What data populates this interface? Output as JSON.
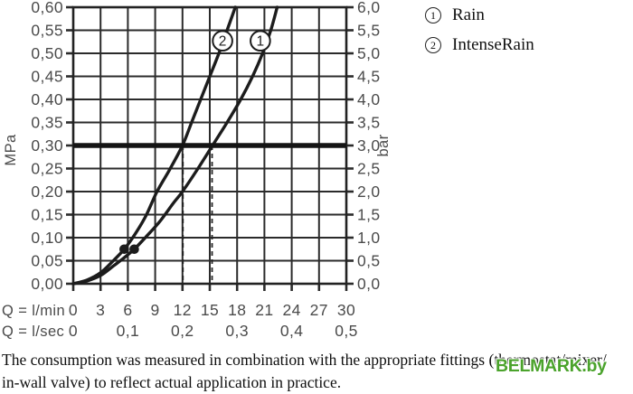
{
  "chart_data": {
    "type": "line",
    "title": "",
    "x_axis": {
      "title": "Q = l/min",
      "range": [
        0,
        30
      ],
      "ticks": [
        0,
        3,
        6,
        9,
        12,
        15,
        18,
        21,
        24,
        27,
        30
      ]
    },
    "x_axis2": {
      "title": "Q = l/sec",
      "ticks": [
        {
          "q": 0,
          "label": "0"
        },
        {
          "q": 6,
          "label": "0,1"
        },
        {
          "q": 12,
          "label": "0,2"
        },
        {
          "q": 18,
          "label": "0,3"
        },
        {
          "q": 24,
          "label": "0,4"
        },
        {
          "q": 30,
          "label": "0,5"
        }
      ]
    },
    "y_axis_left": {
      "title": "MPa",
      "range": [
        0,
        0.6
      ]
    },
    "y_axis_right": {
      "title": "bar",
      "range": [
        0,
        6
      ]
    },
    "y_ticks": [
      {
        "v": 0.6,
        "left": "0,60",
        "right": "6,0"
      },
      {
        "v": 0.55,
        "left": "0,55",
        "right": "5,5"
      },
      {
        "v": 0.5,
        "left": "0,50",
        "right": "5,0"
      },
      {
        "v": 0.45,
        "left": "0,45",
        "right": "4,5"
      },
      {
        "v": 0.4,
        "left": "0,40",
        "right": "4,0"
      },
      {
        "v": 0.35,
        "left": "0,35",
        "right": "3,5"
      },
      {
        "v": 0.3,
        "left": "0,30",
        "right": "3,0"
      },
      {
        "v": 0.25,
        "left": "0,25",
        "right": "2,5"
      },
      {
        "v": 0.2,
        "left": "0,20",
        "right": "2,0"
      },
      {
        "v": 0.15,
        "left": "0,15",
        "right": "1,5"
      },
      {
        "v": 0.1,
        "left": "0,10",
        "right": "1,0"
      },
      {
        "v": 0.05,
        "left": "0,05",
        "right": "0,5"
      },
      {
        "v": 0.0,
        "left": "0,00",
        "right": "0,0"
      }
    ],
    "grid": {
      "x_step_lmin": 3,
      "y_step_mpa": 0.05
    },
    "reference_line": {
      "y_mpa": 0.3,
      "y_bar": 3.0
    },
    "dashed_guides_x_lmin": [
      12.05,
      15.25
    ],
    "series": [
      {
        "id": "1",
        "name": "Rain",
        "points": [
          [
            0,
            0
          ],
          [
            1.5,
            0.006
          ],
          [
            3,
            0.018
          ],
          [
            4.5,
            0.04
          ],
          [
            5.5,
            0.055
          ],
          [
            6.7,
            0.075
          ],
          [
            8,
            0.102
          ],
          [
            9.5,
            0.135
          ],
          [
            11,
            0.175
          ],
          [
            12,
            0.2
          ],
          [
            13.7,
            0.25
          ],
          [
            15.3,
            0.3
          ],
          [
            16.9,
            0.35
          ],
          [
            18.4,
            0.4
          ],
          [
            19.7,
            0.45
          ],
          [
            20.8,
            0.5
          ],
          [
            21.7,
            0.55
          ],
          [
            22.4,
            0.6
          ]
        ],
        "marker": [
          6.7,
          0.075
        ],
        "label_pos": [
          20.55,
          0.527
        ]
      },
      {
        "id": "2",
        "name": "IntenseRain",
        "points": [
          [
            0,
            0
          ],
          [
            1.5,
            0.008
          ],
          [
            3,
            0.024
          ],
          [
            4.3,
            0.048
          ],
          [
            5.6,
            0.075
          ],
          [
            6.8,
            0.108
          ],
          [
            8,
            0.148
          ],
          [
            9.2,
            0.2
          ],
          [
            10.6,
            0.248
          ],
          [
            12,
            0.3
          ],
          [
            13,
            0.35
          ],
          [
            14,
            0.4
          ],
          [
            15,
            0.45
          ],
          [
            16,
            0.5
          ],
          [
            16.9,
            0.55
          ],
          [
            17.8,
            0.6
          ]
        ],
        "marker": [
          5.6,
          0.075
        ],
        "label_pos": [
          16.4,
          0.527
        ]
      }
    ],
    "colors": {
      "grid": "#2b2b2b",
      "curve": "#1c1c1c",
      "label_text": "#4b4b4b"
    }
  },
  "legend": {
    "items": [
      {
        "symbol": "1",
        "label": "Rain"
      },
      {
        "symbol": "2",
        "label": "IntenseRain"
      }
    ]
  },
  "footnote": {
    "line1": "The consumption was measured in combination with the appropriate fittings (thermostat/mixer/",
    "line2": "in-wall valve) to reflect actual application in practice."
  },
  "watermark": {
    "text": "BELMARK.by",
    "color": "#4ba32c"
  }
}
